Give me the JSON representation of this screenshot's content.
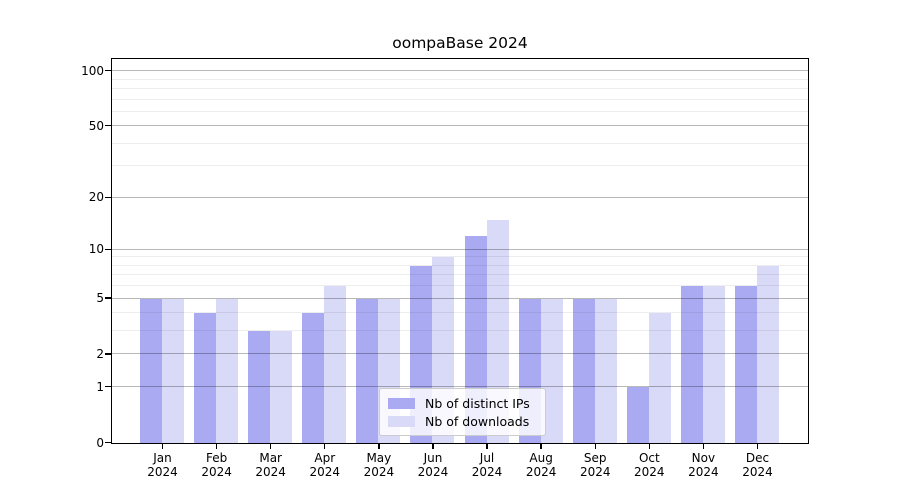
{
  "title": "oompaBase 2024",
  "chart_data": {
    "type": "bar",
    "title": "oompaBase 2024",
    "y_scale": "log1p",
    "categories": [
      "Jan",
      "Feb",
      "Mar",
      "Apr",
      "May",
      "Jun",
      "Jul",
      "Aug",
      "Sep",
      "Oct",
      "Nov",
      "Dec"
    ],
    "x_year_label": "2024",
    "series": [
      {
        "name": "Nb of distinct IPs",
        "color": "#aaaaf2",
        "values": [
          5,
          4,
          3,
          4,
          5,
          8,
          12,
          5,
          5,
          1,
          6,
          6
        ]
      },
      {
        "name": "Nb of downloads",
        "color": "#d9d9f8",
        "values": [
          5,
          5,
          3,
          6,
          5,
          9,
          15,
          5,
          5,
          4,
          6,
          8
        ]
      }
    ],
    "y_major_ticks": [
      0,
      1,
      2,
      5,
      10,
      20,
      50,
      100
    ],
    "y_minor_gridlines": [
      3,
      4,
      6,
      7,
      8,
      9,
      30,
      40,
      60,
      70,
      80,
      90
    ],
    "ylim": [
      0,
      115
    ],
    "grid": true,
    "legend_position": "lower-center"
  },
  "colors": {
    "background": "#ffffff",
    "bar_distinct_ips": "#aaaaf2",
    "bar_downloads": "#d9d9f8",
    "major_grid": "rgba(0,0,0,0.28)",
    "minor_grid": "rgba(0,0,0,0.07)",
    "spine": "#000000",
    "text": "#000000",
    "legend_border": "#cccccc"
  }
}
